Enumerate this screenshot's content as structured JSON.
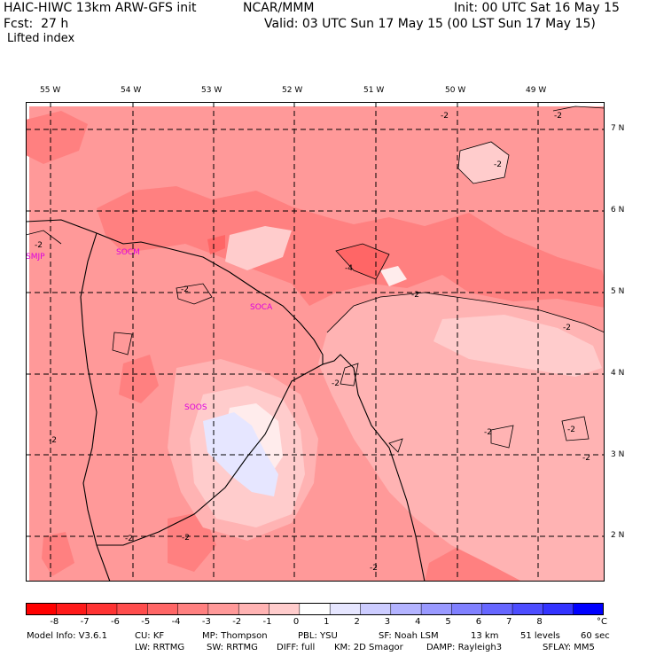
{
  "header": {
    "model_title": "HAIC-HIWC 13km ARW-GFS init",
    "org": "NCAR/MMM",
    "init_line": "Init: 00 UTC Sat 16 May 15",
    "fcst_line": "Fcst:  27 h",
    "valid_line": "Valid: 03 UTC Sun 17 May 15 (00 LST Sun 17 May 15)",
    "field_name": "Lifted index"
  },
  "map": {
    "lon_labels": [
      "55 W",
      "54 W",
      "53 W",
      "52 W",
      "51 W",
      "50 W",
      "49 W"
    ],
    "lat_labels": [
      "7 N",
      "6 N",
      "5 N",
      "4 N",
      "3 N",
      "2 N"
    ],
    "stations": [
      "SMJP",
      "SOCM",
      "SOCA",
      "SOOS"
    ],
    "contour_labels": [
      "-2",
      "-2",
      "-2",
      "-4",
      "-2",
      "-2",
      "-2",
      "-2",
      "-2",
      "-2",
      "-2",
      "-2",
      "-2",
      "-2",
      "-2",
      "-2"
    ]
  },
  "legend": {
    "ticks": [
      "-8",
      "-7",
      "-6",
      "-5",
      "-4",
      "-3",
      "-2",
      "-1",
      "0",
      "1",
      "2",
      "3",
      "4",
      "5",
      "6",
      "7",
      "8"
    ],
    "unit": "°C",
    "colors": [
      "#ff0000",
      "#ff1a1a",
      "#ff3333",
      "#ff4d4d",
      "#ff6666",
      "#ff8080",
      "#ff9999",
      "#ffb3b3",
      "#ffcccc",
      "#ffffff",
      "#e6e6ff",
      "#ccccff",
      "#b3b3ff",
      "#9999ff",
      "#8080ff",
      "#6666ff",
      "#4d4dff",
      "#3333ff",
      "#0000ff"
    ]
  },
  "footer": {
    "line1": {
      "model_info": "Model Info: V3.6.1",
      "cu": "CU: KF",
      "mp": "MP: Thompson",
      "pbl": "PBL: YSU",
      "sf": "SF: Noah LSM",
      "res": "13 km",
      "levels": "51 levels",
      "dt": "60 sec"
    },
    "line2": {
      "lw": "LW: RRTMG",
      "sw": "SW: RRTMG",
      "diff": "DIFF: full",
      "km": "KM: 2D Smagor",
      "damp": "DAMP: Rayleigh3",
      "sflay": "SFLAY: MM5"
    }
  }
}
